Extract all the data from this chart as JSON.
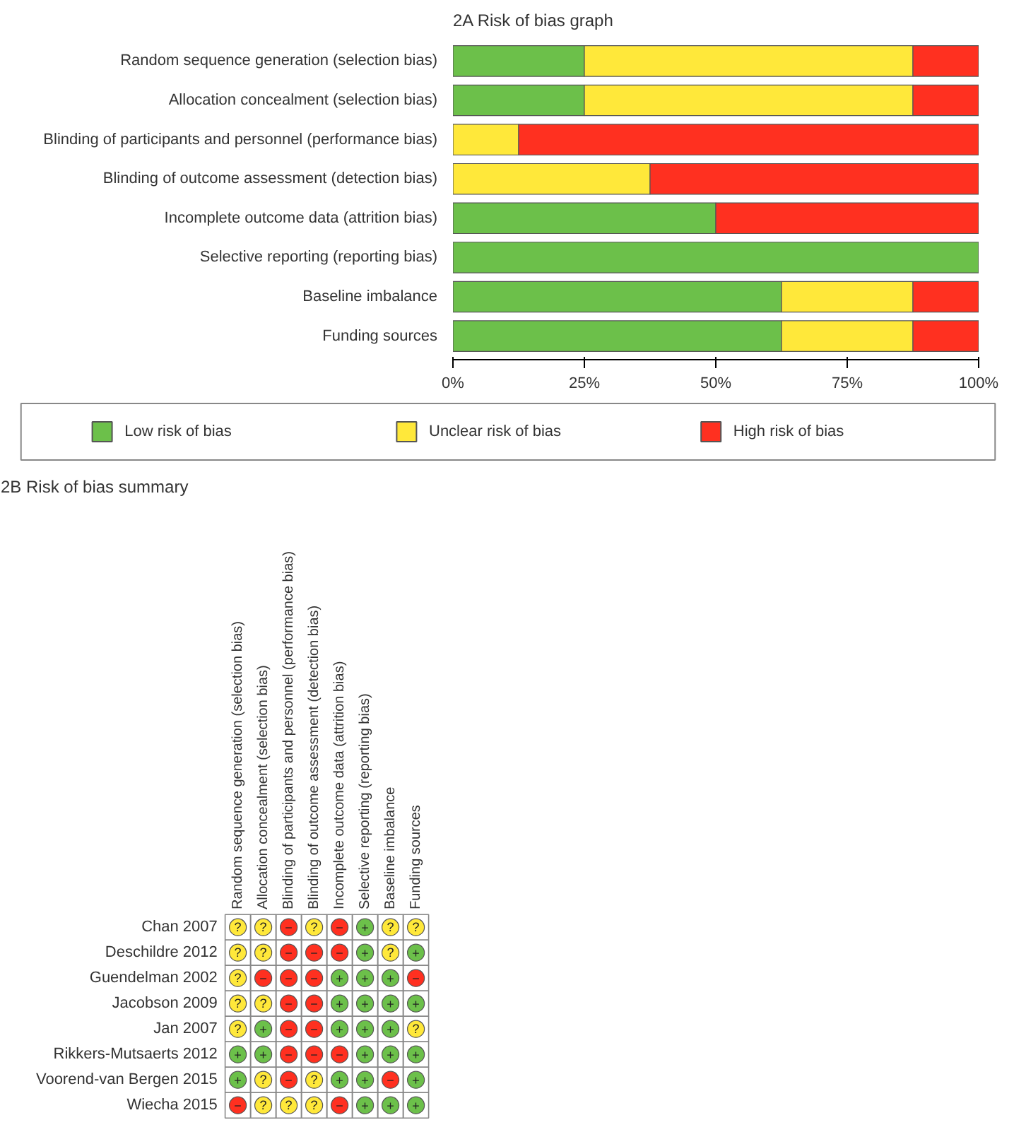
{
  "chart_data": [
    {
      "type": "bar",
      "title": "2A Risk of bias graph",
      "orientation": "horizontal",
      "stacked": true,
      "categories": [
        "Random sequence generation (selection bias)",
        "Allocation concealment (selection bias)",
        "Blinding of participants and personnel (performance bias)",
        "Blinding of outcome assessment (detection bias)",
        "Incomplete outcome data (attrition bias)",
        "Selective reporting (reporting bias)",
        "Baseline imbalance",
        "Funding sources"
      ],
      "series": [
        {
          "name": "Low risk of bias",
          "color": "#6cc04a",
          "values": [
            25,
            25,
            0,
            0,
            50,
            100,
            62.5,
            62.5
          ]
        },
        {
          "name": "Unclear risk of bias",
          "color": "#ffe83a",
          "values": [
            62.5,
            62.5,
            12.5,
            37.5,
            0,
            0,
            25,
            25
          ]
        },
        {
          "name": "High risk of bias",
          "color": "#ff3020",
          "values": [
            12.5,
            12.5,
            87.5,
            62.5,
            50,
            0,
            12.5,
            12.5
          ]
        }
      ],
      "xlim": [
        0,
        100
      ],
      "xticks": [
        {
          "value": 0,
          "label": "0%"
        },
        {
          "value": 25,
          "label": "25%"
        },
        {
          "value": 50,
          "label": "50%"
        },
        {
          "value": 75,
          "label": "75%"
        },
        {
          "value": 100,
          "label": "100%"
        }
      ],
      "grid": false,
      "legend": "bottom"
    },
    {
      "type": "heatmap",
      "title": "2B Risk of bias summary",
      "categories": [
        "Random sequence generation (selection bias)",
        "Allocation concealment (selection bias)",
        "Blinding of participants and personnel (performance bias)",
        "Blinding of outcome assessment (detection bias)",
        "Incomplete outcome data (attrition bias)",
        "Selective reporting (reporting bias)",
        "Baseline imbalance",
        "Funding sources"
      ],
      "y_categories": [
        "Chan 2007",
        "Deschildre 2012",
        "Guendelman 2002",
        "Jacobson 2009",
        "Jan 2007",
        "Rikkers-Mutsaerts 2012",
        "Voorend-van Bergen 2015",
        "Wiecha 2015"
      ],
      "cells": [
        [
          "?",
          "?",
          "−",
          "?",
          "−",
          "+",
          "?",
          "?"
        ],
        [
          "?",
          "?",
          "−",
          "−",
          "−",
          "+",
          "?",
          "+"
        ],
        [
          "?",
          "−",
          "−",
          "−",
          "+",
          "+",
          "+",
          "−"
        ],
        [
          "?",
          "?",
          "−",
          "−",
          "+",
          "+",
          "+",
          "+"
        ],
        [
          "?",
          "+",
          "−",
          "−",
          "+",
          "+",
          "+",
          "?"
        ],
        [
          "+",
          "+",
          "−",
          "−",
          "−",
          "+",
          "+",
          "+"
        ],
        [
          "+",
          "?",
          "−",
          "?",
          "+",
          "+",
          "−",
          "+"
        ],
        [
          "−",
          "?",
          "?",
          "?",
          "−",
          "+",
          "+",
          "+"
        ]
      ],
      "colors": [
        [
          "#ffe83a",
          "#ffe83a",
          "#ff3020",
          "#ffe83a",
          "#ff3020",
          "#6cc04a",
          "#ffe83a",
          "#ffe83a"
        ],
        [
          "#ffe83a",
          "#ffe83a",
          "#ff3020",
          "#ff3020",
          "#ff3020",
          "#6cc04a",
          "#ffe83a",
          "#6cc04a"
        ],
        [
          "#ffe83a",
          "#ff3020",
          "#ff3020",
          "#ff3020",
          "#6cc04a",
          "#6cc04a",
          "#6cc04a",
          "#ff3020"
        ],
        [
          "#ffe83a",
          "#ffe83a",
          "#ff3020",
          "#ff3020",
          "#6cc04a",
          "#6cc04a",
          "#6cc04a",
          "#6cc04a"
        ],
        [
          "#ffe83a",
          "#6cc04a",
          "#ff3020",
          "#ff3020",
          "#6cc04a",
          "#6cc04a",
          "#6cc04a",
          "#ffe83a"
        ],
        [
          "#6cc04a",
          "#6cc04a",
          "#ff3020",
          "#ff3020",
          "#ff3020",
          "#6cc04a",
          "#6cc04a",
          "#6cc04a"
        ],
        [
          "#6cc04a",
          "#ffe83a",
          "#ff3020",
          "#ffe83a",
          "#6cc04a",
          "#6cc04a",
          "#ff3020",
          "#6cc04a"
        ],
        [
          "#ff3020",
          "#ffe83a",
          "#ffe83a",
          "#ffe83a",
          "#ff3020",
          "#6cc04a",
          "#6cc04a",
          "#6cc04a"
        ]
      ]
    }
  ]
}
